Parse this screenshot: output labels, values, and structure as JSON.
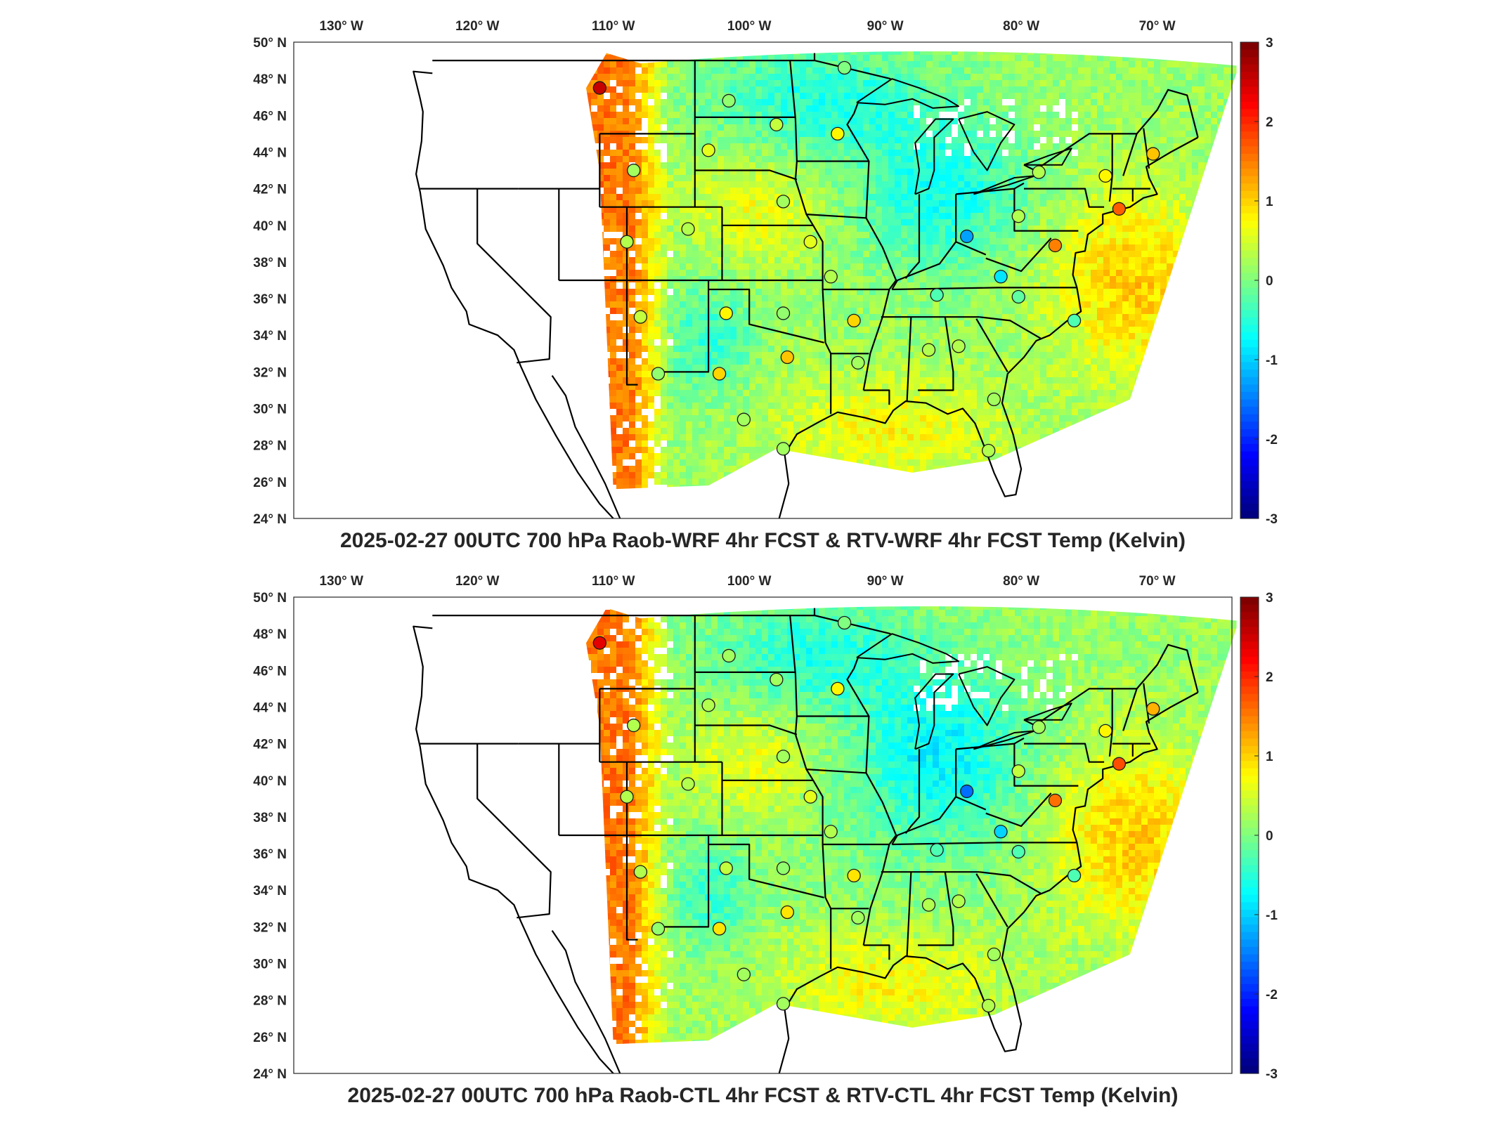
{
  "colorbar": {
    "ticks": [
      "3",
      "2",
      "1",
      "0",
      "-1",
      "-2",
      "-3"
    ],
    "range": [
      -3,
      3
    ],
    "colormap": "jet"
  },
  "lon_ticks": [
    "130° W",
    "120° W",
    "110° W",
    "100° W",
    "90° W",
    "80° W",
    "70° W"
  ],
  "lat_ticks": [
    "50° N",
    "48° N",
    "46° N",
    "44° N",
    "42° N",
    "40° N",
    "38° N",
    "36° N",
    "34° N",
    "32° N",
    "30° N",
    "28° N",
    "26° N",
    "24° N"
  ],
  "lon_values": [
    -130,
    -120,
    -110,
    -100,
    -90,
    -80,
    -70
  ],
  "lat_values": [
    50,
    48,
    46,
    44,
    42,
    40,
    38,
    36,
    34,
    32,
    30,
    28,
    26,
    24
  ],
  "panels": [
    {
      "id": "top",
      "title": "2025-02-27 00UTC 700 hPa Raob-WRF 4hr FCST & RTV-WRF 4hr FCST Temp (Kelvin)"
    },
    {
      "id": "bottom",
      "title": "2025-02-27 00UTC 700 hPa Raob-CTL 4hr FCST & RTV-CTL 4hr FCST Temp (Kelvin)"
    }
  ],
  "stations": [
    {
      "lon": -111.0,
      "lat": 47.5,
      "v_top": 2.6,
      "v_bot": 2.4
    },
    {
      "lon": -108.5,
      "lat": 43.0,
      "v_top": 0.2,
      "v_bot": 0.3
    },
    {
      "lon": -101.5,
      "lat": 46.8,
      "v_top": 0.1,
      "v_bot": 0.2
    },
    {
      "lon": -98.0,
      "lat": 45.5,
      "v_top": 0.4,
      "v_bot": 0.2
    },
    {
      "lon": -103.0,
      "lat": 44.1,
      "v_top": 0.6,
      "v_bot": 0.3
    },
    {
      "lon": -93.5,
      "lat": 45.0,
      "v_top": 0.8,
      "v_bot": 0.8
    },
    {
      "lon": -93.0,
      "lat": 48.6,
      "v_top": 0.0,
      "v_bot": 0.0
    },
    {
      "lon": -97.5,
      "lat": 41.3,
      "v_top": 0.2,
      "v_bot": 0.2
    },
    {
      "lon": -109.0,
      "lat": 39.1,
      "v_top": 0.3,
      "v_bot": 0.3
    },
    {
      "lon": -104.5,
      "lat": 39.8,
      "v_top": 0.3,
      "v_bot": 0.3
    },
    {
      "lon": -95.5,
      "lat": 39.1,
      "v_top": 0.6,
      "v_bot": 0.6
    },
    {
      "lon": -108.0,
      "lat": 35.0,
      "v_top": 0.4,
      "v_bot": 0.3
    },
    {
      "lon": -101.7,
      "lat": 35.2,
      "v_top": 0.8,
      "v_bot": 0.4
    },
    {
      "lon": -97.5,
      "lat": 35.2,
      "v_top": 0.1,
      "v_bot": 0.1
    },
    {
      "lon": -94.0,
      "lat": 37.2,
      "v_top": 0.3,
      "v_bot": 0.3
    },
    {
      "lon": -92.3,
      "lat": 34.8,
      "v_top": 1.0,
      "v_bot": 0.9
    },
    {
      "lon": -97.2,
      "lat": 32.8,
      "v_top": 1.1,
      "v_bot": 0.9
    },
    {
      "lon": -106.7,
      "lat": 31.9,
      "v_top": 0.1,
      "v_bot": 0.1
    },
    {
      "lon": -102.2,
      "lat": 31.9,
      "v_top": 1.0,
      "v_bot": 0.9
    },
    {
      "lon": -100.4,
      "lat": 29.4,
      "v_top": 0.2,
      "v_bot": 0.2
    },
    {
      "lon": -97.5,
      "lat": 27.8,
      "v_top": 0.2,
      "v_bot": 0.2
    },
    {
      "lon": -92.0,
      "lat": 32.5,
      "v_top": 0.2,
      "v_bot": 0.2
    },
    {
      "lon": -86.8,
      "lat": 33.2,
      "v_top": 0.3,
      "v_bot": 0.3
    },
    {
      "lon": -84.6,
      "lat": 33.4,
      "v_top": 0.3,
      "v_bot": 0.3
    },
    {
      "lon": -82.0,
      "lat": 30.5,
      "v_top": 0.2,
      "v_bot": 0.2
    },
    {
      "lon": -82.4,
      "lat": 27.7,
      "v_top": 0.3,
      "v_bot": 0.3
    },
    {
      "lon": -86.2,
      "lat": 36.2,
      "v_top": -0.3,
      "v_bot": -0.3
    },
    {
      "lon": -80.2,
      "lat": 36.1,
      "v_top": -0.2,
      "v_bot": -0.3
    },
    {
      "lon": -84.0,
      "lat": 39.4,
      "v_top": -1.3,
      "v_bot": -1.6
    },
    {
      "lon": -80.2,
      "lat": 40.5,
      "v_top": 0.3,
      "v_bot": 0.4
    },
    {
      "lon": -81.5,
      "lat": 37.2,
      "v_top": -0.9,
      "v_bot": -1.0
    },
    {
      "lon": -77.5,
      "lat": 38.9,
      "v_top": 1.5,
      "v_bot": 1.6
    },
    {
      "lon": -72.8,
      "lat": 40.9,
      "v_top": 1.7,
      "v_bot": 1.8
    },
    {
      "lon": -76.1,
      "lat": 34.8,
      "v_top": -0.3,
      "v_bot": -0.3
    },
    {
      "lon": -78.7,
      "lat": 42.9,
      "v_top": 0.3,
      "v_bot": 0.2
    },
    {
      "lon": -73.8,
      "lat": 42.7,
      "v_top": 0.8,
      "v_bot": 0.8
    },
    {
      "lon": -70.3,
      "lat": 43.9,
      "v_top": 1.1,
      "v_bot": 1.2
    }
  ]
}
